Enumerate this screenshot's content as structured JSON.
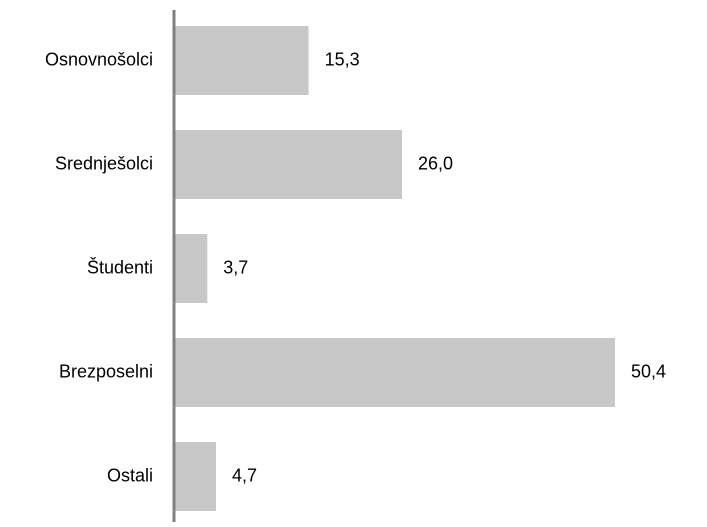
{
  "chart_data": {
    "type": "bar",
    "orientation": "horizontal",
    "categories": [
      "Osnovnošolci",
      "Srednješolci",
      "Študenti",
      "Brezposelni",
      "Ostali"
    ],
    "values": [
      15.3,
      26.0,
      3.7,
      50.4,
      4.7
    ],
    "value_labels": [
      "15,3",
      "26,0",
      "3,7",
      "50,4",
      "4,7"
    ],
    "xlim": [
      0,
      50.4
    ],
    "grid": false,
    "legend": "none",
    "colors": {
      "bar": "#c8c8c8",
      "axis": "#808080",
      "text": "#000000"
    }
  }
}
